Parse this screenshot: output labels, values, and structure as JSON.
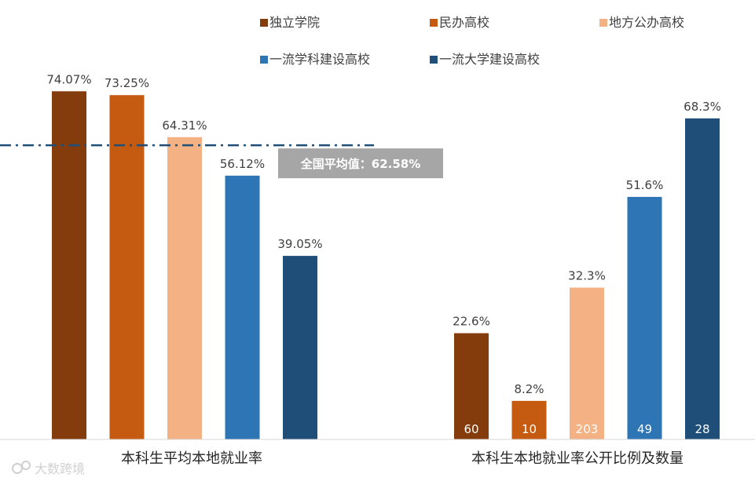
{
  "chart_data": {
    "type": "bar",
    "legend": {
      "placement": "top",
      "items": [
        {
          "label": "独立学院",
          "color": "#843c0c"
        },
        {
          "label": "民办高校",
          "color": "#c55a11"
        },
        {
          "label": "地方公办高校",
          "color": "#f4b183"
        },
        {
          "label": "一流学科建设高校",
          "color": "#2e75b6"
        },
        {
          "label": "一流大学建设高校",
          "color": "#1f4e79"
        }
      ]
    },
    "groups": [
      {
        "label": "本科生平均本地就业率",
        "values": [
          74.07,
          73.25,
          64.31,
          56.12,
          39.05
        ],
        "value_labels": [
          "74.07%",
          "73.25%",
          "64.31%",
          "56.12%",
          "39.05%"
        ]
      },
      {
        "label": "本科生本地就业率公开比例及数量",
        "values": [
          22.6,
          8.2,
          32.3,
          51.6,
          68.3
        ],
        "value_labels": [
          "22.6%",
          "8.2%",
          "32.3%",
          "51.6%",
          "68.3%"
        ],
        "counts": [
          "60",
          "10",
          "203",
          "49",
          "28"
        ]
      }
    ],
    "average": {
      "value": 62.58,
      "label": "全国平均值：62.58%"
    },
    "grid": false
  },
  "watermark": "大数跨境"
}
